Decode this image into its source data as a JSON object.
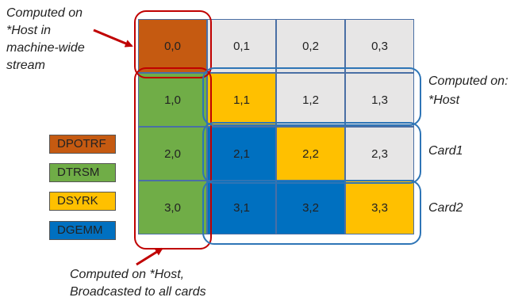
{
  "notes": {
    "top": [
      "Computed on",
      "*Host in",
      "machine-wide",
      "stream"
    ],
    "bottom": [
      "Computed on *Host,",
      "Broadcasted to all cards"
    ]
  },
  "right_labels": {
    "title": "Computed on:",
    "host": "*Host",
    "card1": "Card1",
    "card2": "Card2"
  },
  "legend": [
    {
      "label": "DPOTRF",
      "color": "#c55a11"
    },
    {
      "label": "DTRSM",
      "color": "#70ad47"
    },
    {
      "label": "DSYRK",
      "color": "#ffc000"
    },
    {
      "label": "DGEMM",
      "color": "#0070c0"
    }
  ],
  "colors": {
    "empty": "#e7e6e6",
    "red_outline": "#c00000",
    "blue_outline": "#2e75b6",
    "arrow": "#c00000"
  },
  "grid": [
    [
      {
        "text": "0,0",
        "kernel": "DPOTRF"
      },
      {
        "text": "0,1",
        "kernel": null
      },
      {
        "text": "0,2",
        "kernel": null
      },
      {
        "text": "0,3",
        "kernel": null
      }
    ],
    [
      {
        "text": "1,0",
        "kernel": "DTRSM"
      },
      {
        "text": "1,1",
        "kernel": "DSYRK"
      },
      {
        "text": "1,2",
        "kernel": null
      },
      {
        "text": "1,3",
        "kernel": null
      }
    ],
    [
      {
        "text": "2,0",
        "kernel": "DTRSM"
      },
      {
        "text": "2,1",
        "kernel": "DGEMM"
      },
      {
        "text": "2,2",
        "kernel": "DSYRK"
      },
      {
        "text": "2,3",
        "kernel": null
      }
    ],
    [
      {
        "text": "3,0",
        "kernel": "DTRSM"
      },
      {
        "text": "3,1",
        "kernel": "DGEMM"
      },
      {
        "text": "3,2",
        "kernel": "DGEMM"
      },
      {
        "text": "3,3",
        "kernel": "DSYRK"
      }
    ]
  ]
}
